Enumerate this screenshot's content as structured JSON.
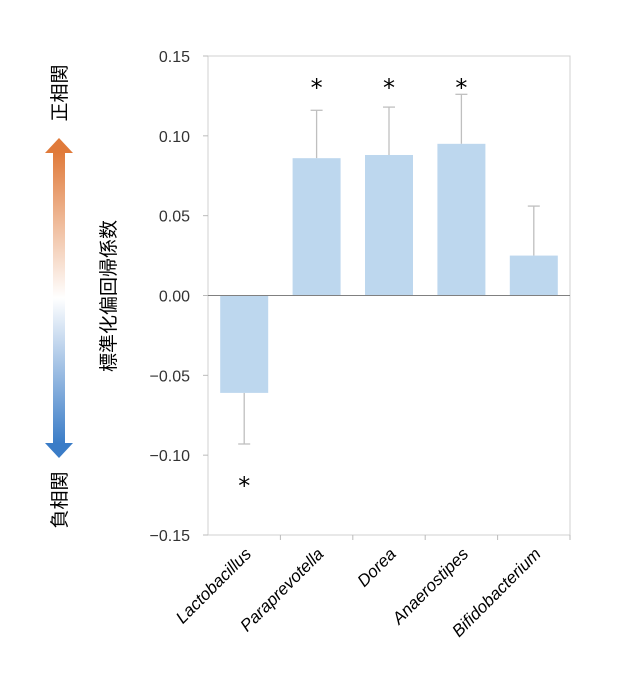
{
  "chart_data": {
    "type": "bar",
    "ylabel": "標準化偏回帰係数",
    "categories": [
      "Lactobacillus",
      "Paraprevotella",
      "Dorea",
      "Anaerostipes",
      "Bifidobacterium"
    ],
    "values": [
      -0.061,
      0.086,
      0.088,
      0.095,
      0.025
    ],
    "error_upper": [
      -0.093,
      0.116,
      0.118,
      0.126,
      0.056
    ],
    "significance": [
      "*",
      "*",
      "*",
      "*",
      ""
    ],
    "ylim": [
      -0.15,
      0.15
    ],
    "yticks": [
      0.15,
      0.1,
      0.05,
      0.0,
      -0.05,
      -0.1,
      -0.15
    ],
    "ytick_labels": [
      "0.15",
      "0.10",
      "0.05",
      "0.00",
      "−0.05",
      "−0.10",
      "−0.15"
    ],
    "grid": false,
    "bar_color": "#bdd7ee",
    "arrow": {
      "top_label": "正相関",
      "bottom_label": "負相関",
      "top_color": "#e07a3a",
      "bottom_color": "#3a7cc7"
    }
  }
}
